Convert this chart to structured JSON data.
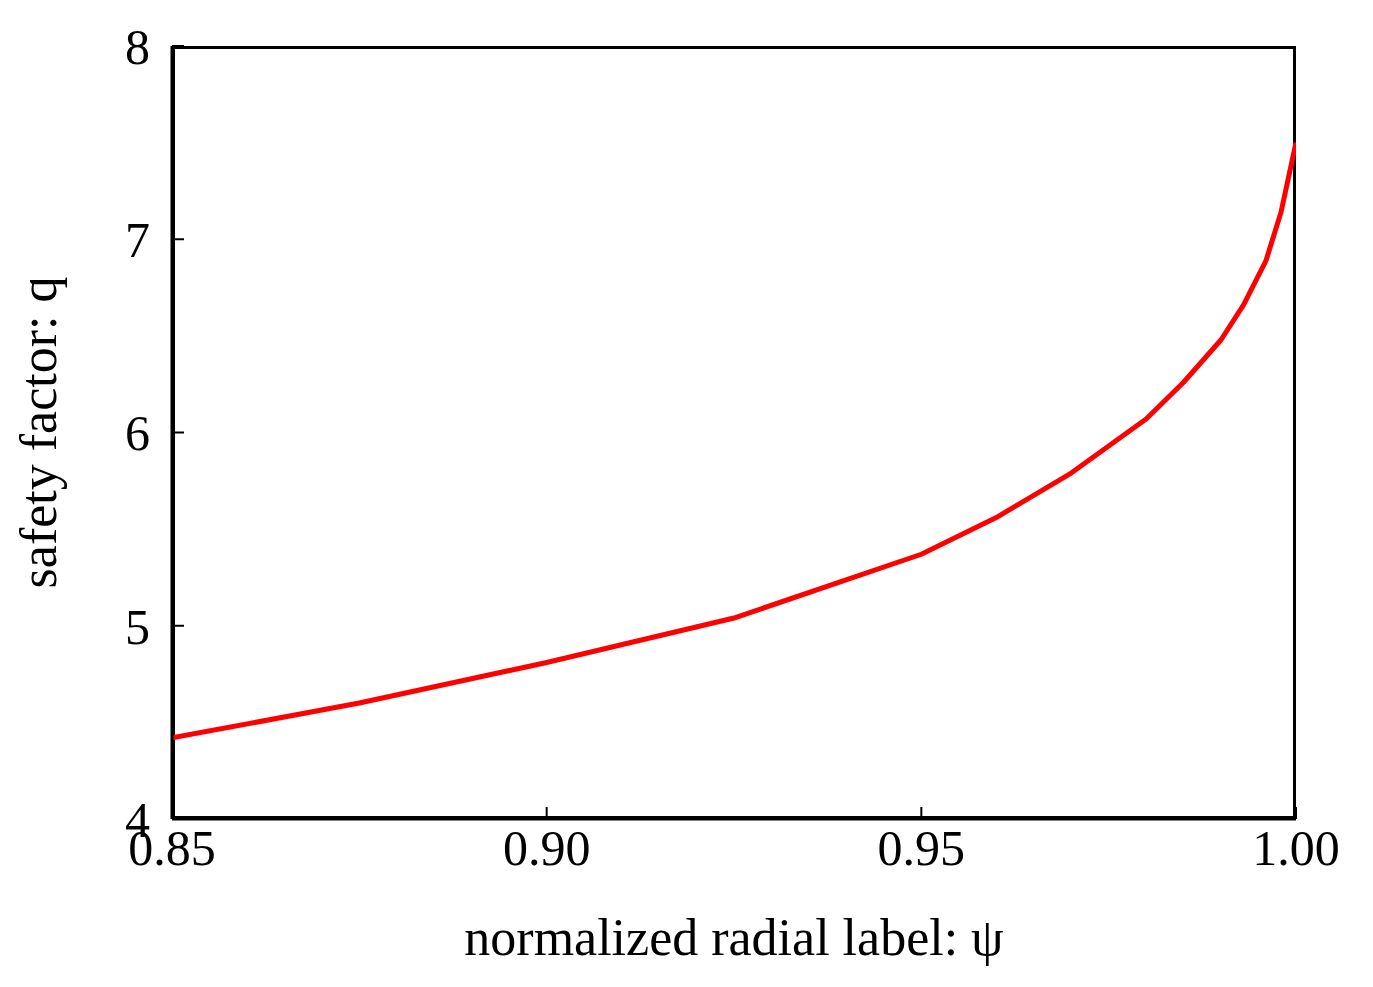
{
  "chart_data": {
    "type": "line",
    "xlabel": "normalized radial label: ψ",
    "ylabel": "safety factor: q",
    "x": [
      0.85,
      0.875,
      0.9,
      0.925,
      0.95,
      0.96,
      0.97,
      0.98,
      0.985,
      0.99,
      0.993,
      0.996,
      0.998,
      1.0
    ],
    "series": [
      {
        "color": "#ff0000",
        "values": [
          4.42,
          4.6,
          4.81,
          5.04,
          5.37,
          5.56,
          5.79,
          6.07,
          6.26,
          6.48,
          6.66,
          6.89,
          7.14,
          7.5
        ]
      }
    ],
    "xlim": [
      0.85,
      1.0
    ],
    "xticks": [
      {
        "value": 0.85,
        "label": "0.85"
      },
      {
        "value": 0.9,
        "label": "0.90"
      },
      {
        "value": 0.95,
        "label": "0.95"
      },
      {
        "value": 1.0,
        "label": "1.00"
      }
    ],
    "ylim": [
      4,
      8
    ],
    "yticks": [
      4,
      5,
      6,
      7,
      8
    ],
    "marker": "none",
    "line_style": "solid"
  }
}
